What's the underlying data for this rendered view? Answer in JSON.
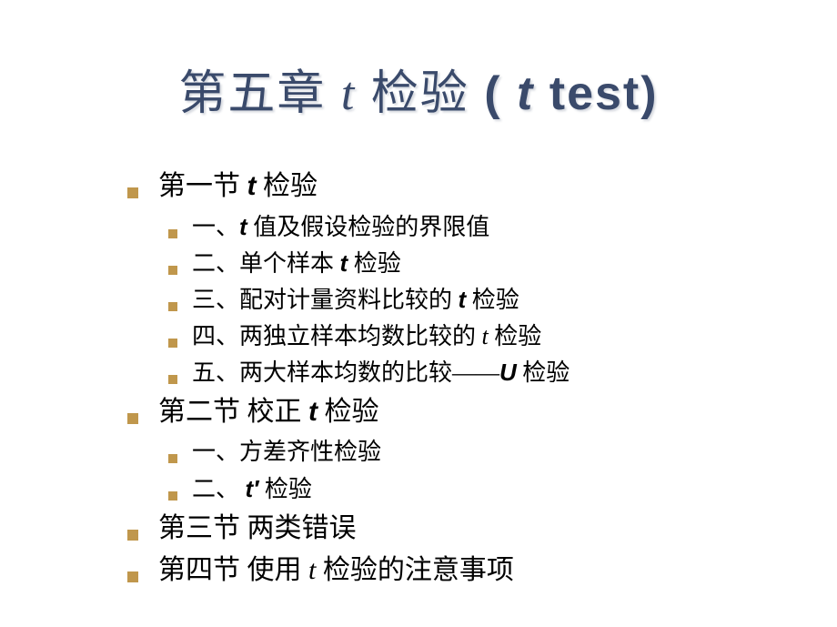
{
  "colors": {
    "title_color": "#3a4a6b",
    "text_color": "#000000",
    "bullet_color": "#c0974c",
    "background": "#ffffff",
    "title_shadow": "rgba(120,130,150,0.3)"
  },
  "typography": {
    "title_fontsize": 52,
    "level1_fontsize": 30,
    "level2_fontsize": 26,
    "font_family_cjk": "SimSun",
    "font_family_latin_italic": "Times New Roman",
    "font_family_bold_italic": "Arial"
  },
  "title": {
    "prefix": "第五章   ",
    "t1": "t",
    "mid": " 检验   ",
    "lparen": "( ",
    "t2": "t",
    "rest": "  test)"
  },
  "items": [
    {
      "level": 1,
      "segments": [
        {
          "text": "第一节  ",
          "style": "plain"
        },
        {
          "text": "t",
          "style": "itb"
        },
        {
          "text": " 检验",
          "style": "plain"
        }
      ]
    },
    {
      "level": 2,
      "segments": [
        {
          "text": "一、",
          "style": "plain"
        },
        {
          "text": "t",
          "style": "itb"
        },
        {
          "text": " 值及假设检验的界限值",
          "style": "plain"
        }
      ]
    },
    {
      "level": 2,
      "segments": [
        {
          "text": "二、单个样本 ",
          "style": "plain"
        },
        {
          "text": "t",
          "style": "itb"
        },
        {
          "text": "  检验",
          "style": "plain"
        }
      ]
    },
    {
      "level": 2,
      "segments": [
        {
          "text": "三、配对计量资料比较的 ",
          "style": "plain"
        },
        {
          "text": "t",
          "style": "itb"
        },
        {
          "text": "  检验",
          "style": "plain"
        }
      ]
    },
    {
      "level": 2,
      "segments": [
        {
          "text": "四、两独立样本均数比较的 ",
          "style": "plain"
        },
        {
          "text": "t",
          "style": "it"
        },
        {
          "text": " 检验",
          "style": "plain"
        }
      ]
    },
    {
      "level": 2,
      "segments": [
        {
          "text": "五、两大样本均数的比较——",
          "style": "plain"
        },
        {
          "text": "U",
          "style": "itb"
        },
        {
          "text": " 检验",
          "style": "plain"
        }
      ]
    },
    {
      "level": 1,
      "segments": [
        {
          "text": "第二节  校正 ",
          "style": "plain"
        },
        {
          "text": "t",
          "style": "itb"
        },
        {
          "text": " 检验",
          "style": "plain"
        }
      ]
    },
    {
      "level": 2,
      "segments": [
        {
          "text": "一、方差齐性检验",
          "style": "plain"
        }
      ]
    },
    {
      "level": 2,
      "segments": [
        {
          "text": "二、 ",
          "style": "plain"
        },
        {
          "text": "t′",
          "style": "itb"
        },
        {
          "text": " 检验",
          "style": "plain"
        }
      ]
    },
    {
      "level": 1,
      "segments": [
        {
          "text": "第三节   两类错误",
          "style": "plain"
        }
      ]
    },
    {
      "level": 1,
      "segments": [
        {
          "text": "第四节   使用 ",
          "style": "plain"
        },
        {
          "text": "t",
          "style": "it"
        },
        {
          "text": " 检验的注意事项",
          "style": "plain"
        }
      ]
    }
  ]
}
